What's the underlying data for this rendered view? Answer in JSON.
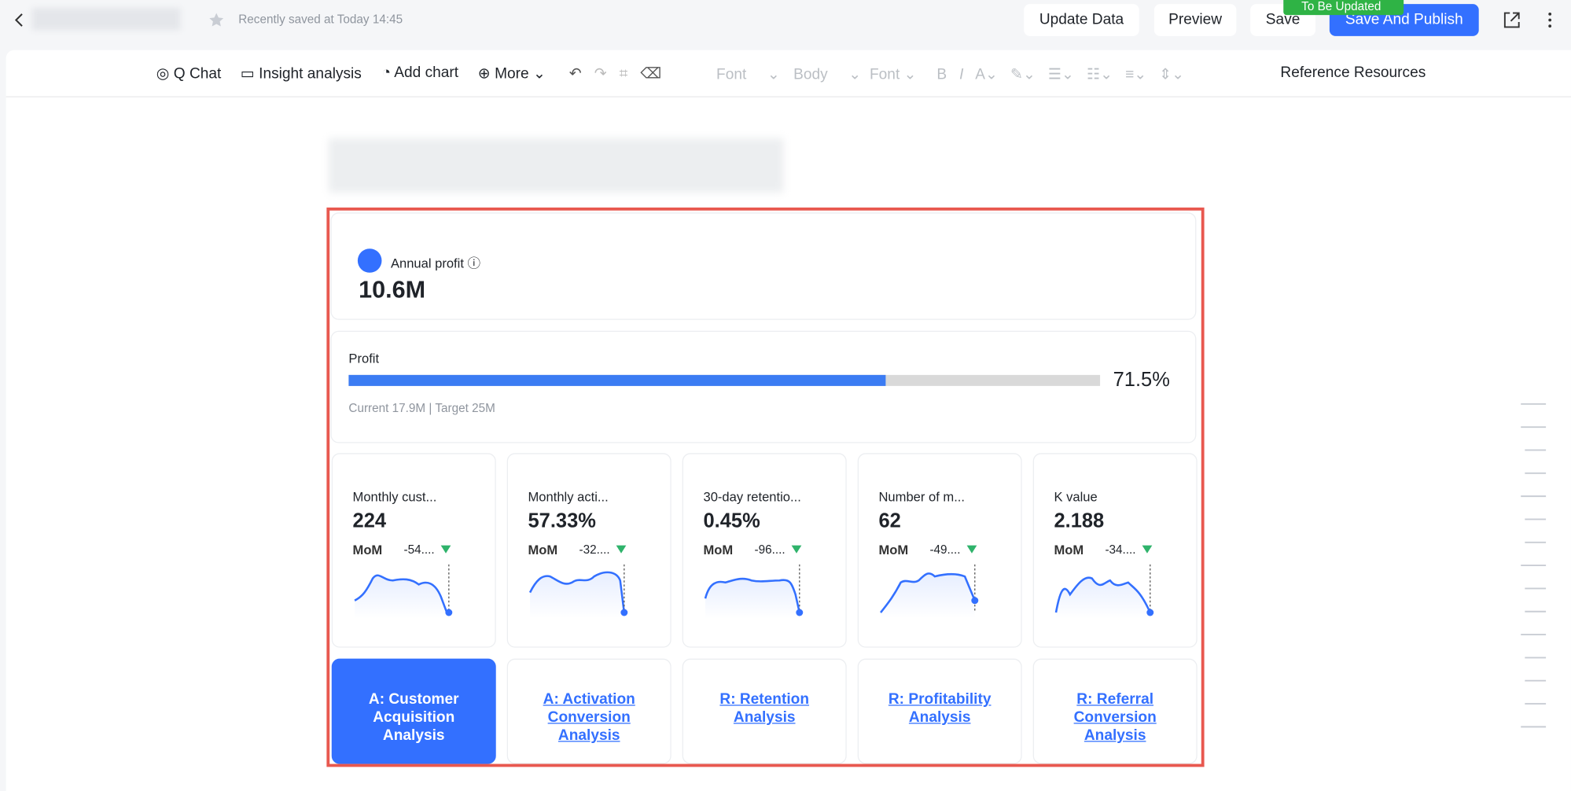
{
  "header": {
    "saved": "Recently saved at Today 14:45",
    "buttons": [
      "Update Data",
      "Preview",
      "Save",
      "Save And Publish"
    ],
    "badge": "To Be Updated"
  },
  "toolbar": {
    "items": [
      "Q Chat",
      "Insight analysis",
      "Add chart",
      "More"
    ],
    "formats": [
      "Font",
      "Body",
      "Font"
    ],
    "reference": "Reference Resources"
  },
  "profit_card": {
    "label": "Annual profit",
    "value": "10.6M"
  },
  "progress": {
    "label": "Profit",
    "percent": {
      "value": 71.5,
      "label": "71.5%"
    },
    "detail": "Current 17.9M | Target 25M"
  },
  "metrics": [
    {
      "name": "Monthly cust...",
      "value": "224",
      "mom": "MoM",
      "change": "-54...."
    },
    {
      "name": "Monthly acti...",
      "value": "57.33%",
      "mom": "MoM",
      "change": "-32...."
    },
    {
      "name": "30-day retentio...",
      "value": "0.45%",
      "mom": "MoM",
      "change": "-96...."
    },
    {
      "name": "Number of m...",
      "value": "62",
      "mom": "MoM",
      "change": "-49...."
    },
    {
      "name": "K value",
      "value": "2.188",
      "mom": "MoM",
      "change": "-34...."
    }
  ],
  "links": [
    "A: Customer Acquisition Analysis",
    "A: Activation Conversion Analysis",
    "R: Retention Analysis",
    "R: Profitability Analysis",
    "R: Referral Conversion Analysis"
  ]
}
